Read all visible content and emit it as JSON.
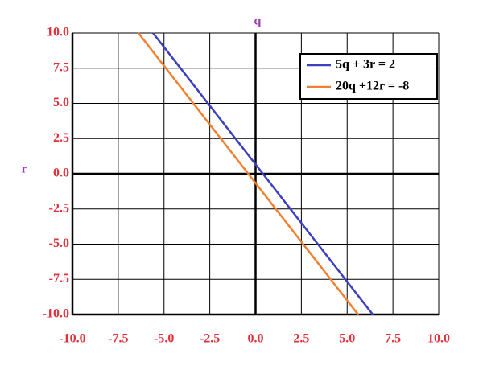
{
  "chart_data": {
    "type": "line",
    "x_label": "q",
    "y_label": "r",
    "series": [
      {
        "name": "5q + 3r = 2",
        "color": "#3b3fc0",
        "x": [
          -5.6,
          6.4
        ],
        "values": [
          10,
          -10
        ]
      },
      {
        "name": "20q +12r = -8",
        "color": "#f08030",
        "x": [
          -6.4,
          5.6
        ],
        "values": [
          10,
          -10
        ]
      }
    ],
    "xlim": [
      -10,
      10
    ],
    "ylim": [
      -10,
      10
    ],
    "xticks": [
      {
        "value": -10,
        "label": "-10.0"
      },
      {
        "value": -7.5,
        "label": "-7.5"
      },
      {
        "value": -5,
        "label": "-5.0"
      },
      {
        "value": -2.5,
        "label": "-2.5"
      },
      {
        "value": 0,
        "label": "0.0"
      },
      {
        "value": 2.5,
        "label": "2.5"
      },
      {
        "value": 5,
        "label": "5.0"
      },
      {
        "value": 7.5,
        "label": "7.5"
      },
      {
        "value": 10,
        "label": "10.0"
      }
    ],
    "yticks": [
      {
        "value": -10,
        "label": "-10.0"
      },
      {
        "value": -7.5,
        "label": "-7.5"
      },
      {
        "value": -5,
        "label": "-5.0"
      },
      {
        "value": -2.5,
        "label": "-2.5"
      },
      {
        "value": 0,
        "label": "0.0"
      },
      {
        "value": 2.5,
        "label": "2.5"
      },
      {
        "value": 5,
        "label": "5.0"
      },
      {
        "value": 7.5,
        "label": "7.5"
      },
      {
        "value": 10,
        "label": "10.0"
      }
    ],
    "grid": true,
    "legend": "upper-right"
  }
}
